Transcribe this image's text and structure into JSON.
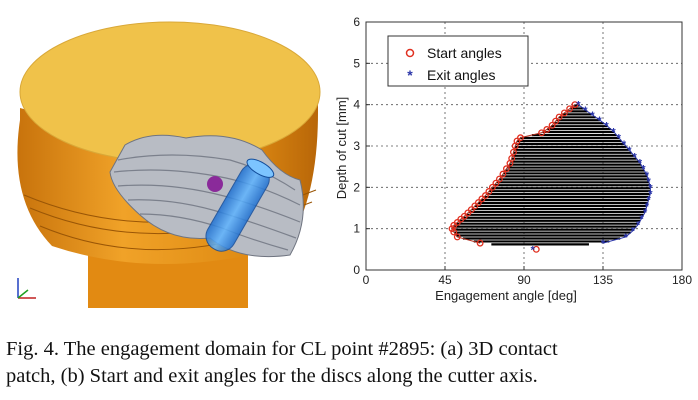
{
  "figure": {
    "caption_line1": "Fig. 4. The engagement domain for CL point #2895: (a) 3D contact",
    "caption_line2": "patch, (b) Start and exit angles for the discs along the cutter axis."
  },
  "colors": {
    "workpiece_top": "#f0c24a",
    "workpiece_side": "#e8961a",
    "contact_patch": "#b8bcc4",
    "cutter": "#2f8fe8",
    "start_marker": "#e03020",
    "exit_marker": "#2a35a8",
    "band": "#000000"
  },
  "chart_data": {
    "type": "scatter",
    "xlabel": "Engagement angle [deg]",
    "ylabel": "Depth of cut [mm]",
    "xlim": [
      0,
      180
    ],
    "ylim": [
      0,
      6
    ],
    "xticks": [
      "0",
      "45",
      "90",
      "135",
      "180"
    ],
    "yticks": [
      "0",
      "1",
      "2",
      "3",
      "4",
      "5",
      "6"
    ],
    "grid": true,
    "legend_position": "top-left",
    "series": [
      {
        "name": "Start angles",
        "marker": "circle",
        "points": [
          [
            97,
            0.5
          ],
          [
            65,
            0.65
          ],
          [
            52,
            0.8
          ],
          [
            50,
            0.92
          ],
          [
            49,
            1.0
          ],
          [
            50,
            1.08
          ],
          [
            52,
            1.15
          ],
          [
            54,
            1.23
          ],
          [
            56,
            1.3
          ],
          [
            58,
            1.38
          ],
          [
            60,
            1.46
          ],
          [
            62,
            1.55
          ],
          [
            64,
            1.63
          ],
          [
            66,
            1.72
          ],
          [
            68,
            1.8
          ],
          [
            70,
            1.9
          ],
          [
            72,
            2.0
          ],
          [
            74,
            2.1
          ],
          [
            76,
            2.2
          ],
          [
            78,
            2.32
          ],
          [
            80,
            2.45
          ],
          [
            82,
            2.58
          ],
          [
            83,
            2.7
          ],
          [
            84,
            2.85
          ],
          [
            85,
            3.0
          ],
          [
            86,
            3.12
          ],
          [
            88,
            3.2
          ],
          [
            100,
            3.32
          ],
          [
            103,
            3.4
          ],
          [
            106,
            3.5
          ],
          [
            108,
            3.6
          ],
          [
            110,
            3.7
          ],
          [
            113,
            3.8
          ],
          [
            116,
            3.9
          ],
          [
            119,
            4.0
          ]
        ]
      },
      {
        "name": "Exit angles",
        "marker": "asterisk",
        "points": [
          [
            95,
            0.5
          ],
          [
            135,
            0.65
          ],
          [
            148,
            0.8
          ],
          [
            152,
            0.95
          ],
          [
            155,
            1.1
          ],
          [
            157,
            1.25
          ],
          [
            159,
            1.4
          ],
          [
            160,
            1.55
          ],
          [
            161,
            1.7
          ],
          [
            162,
            1.85
          ],
          [
            162,
            2.0
          ],
          [
            161,
            2.15
          ],
          [
            160,
            2.3
          ],
          [
            158,
            2.45
          ],
          [
            156,
            2.6
          ],
          [
            153,
            2.75
          ],
          [
            150,
            2.9
          ],
          [
            147,
            3.05
          ],
          [
            144,
            3.2
          ],
          [
            141,
            3.35
          ],
          [
            137,
            3.5
          ],
          [
            133,
            3.63
          ],
          [
            129,
            3.75
          ],
          [
            125,
            3.87
          ],
          [
            121,
            4.0
          ]
        ]
      }
    ]
  }
}
